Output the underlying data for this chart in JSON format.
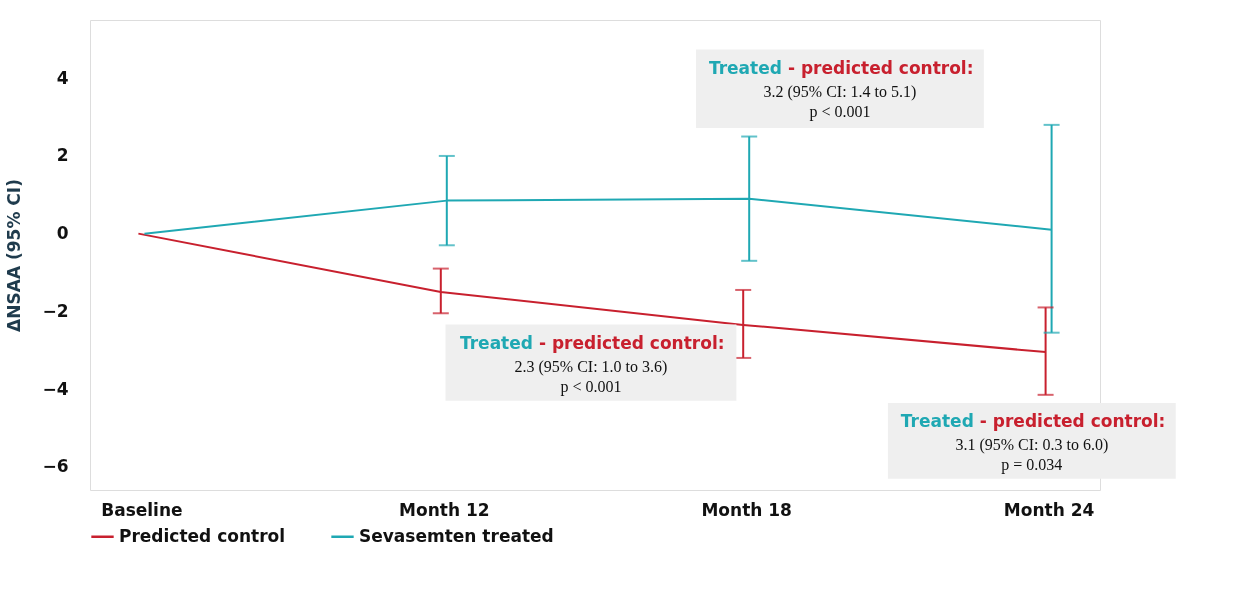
{
  "chart_data": {
    "type": "line",
    "ylabel": "ΔNSAA (95% CI)",
    "categories": [
      "Baseline",
      "Month 12",
      "Month 18",
      "Month 24"
    ],
    "ylim": [
      -6.6,
      5.5
    ],
    "yticks": [
      -6,
      -4,
      -2,
      0,
      2,
      4
    ],
    "series": [
      {
        "name": "Predicted control",
        "color": "#c8202e",
        "values": [
          0,
          -1.5,
          -2.35,
          -3.05
        ],
        "errors": [
          null,
          [
            -2.05,
            -0.9
          ],
          [
            -3.2,
            -1.45
          ],
          [
            -4.15,
            -1.9
          ]
        ]
      },
      {
        "name": "Sevasemten treated",
        "color": "#1fa8b3",
        "values": [
          0,
          0.85,
          0.9,
          0.1
        ],
        "errors": [
          null,
          [
            -0.3,
            2.0
          ],
          [
            -0.7,
            2.5
          ],
          [
            -2.55,
            2.8
          ]
        ]
      }
    ],
    "annotations": [
      "Treated - predicted control:\n3.2 (95% CI: 1.4 to 5.1)\np < 0.001",
      "Treated - predicted control:\n2.3 (95% CI: 1.0 to 3.6)\np < 0.001",
      "Treated - predicted control:\n3.1 (95% CI: 0.3 to 6.0)\np = 0.034"
    ],
    "grid": false,
    "legend": "bottom",
    "marker": "none",
    "line_style": "solid"
  }
}
